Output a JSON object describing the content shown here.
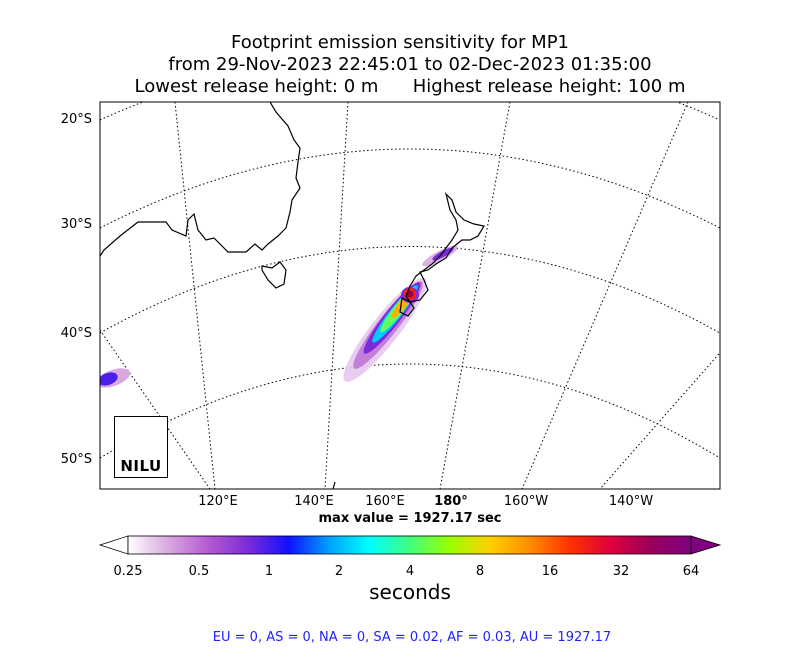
{
  "title": {
    "line1": "Footprint emission sensitivity for MP1",
    "line2": "from 29-Nov-2023 22:45:01 to 02-Dec-2023 01:35:00",
    "line3": "Lowest release height: 0 m      Highest release height: 100 m"
  },
  "axes": {
    "lat_labels": [
      "20°S",
      "30°S",
      "40°S",
      "50°S"
    ],
    "lon_labels": [
      "120°E",
      "140°E",
      "160°E",
      "180°",
      "160°W",
      "140°W"
    ]
  },
  "max_value_text": "max value = 1927.17 sec",
  "colorbar": {
    "tick_labels": [
      "0.25",
      "0.5",
      "1",
      "2",
      "4",
      "8",
      "16",
      "32",
      "64"
    ],
    "unit_label": "seconds",
    "colors": [
      "#ffffff",
      "#d9a8e0",
      "#b45ad2",
      "#7b2bd9",
      "#1010ff",
      "#00a0ff",
      "#00ffff",
      "#40ff80",
      "#9aff00",
      "#ffd000",
      "#ff8c00",
      "#ff3000",
      "#e0003c",
      "#9a005a",
      "#800080"
    ]
  },
  "regions_text": "EU = 0,  AS = 0,  NA = 0,  SA = 0.02,  AF = 0.03,  AU = 1927.17",
  "logo": {
    "text": "NILU",
    "accent_color": "#1aa3e8"
  }
}
